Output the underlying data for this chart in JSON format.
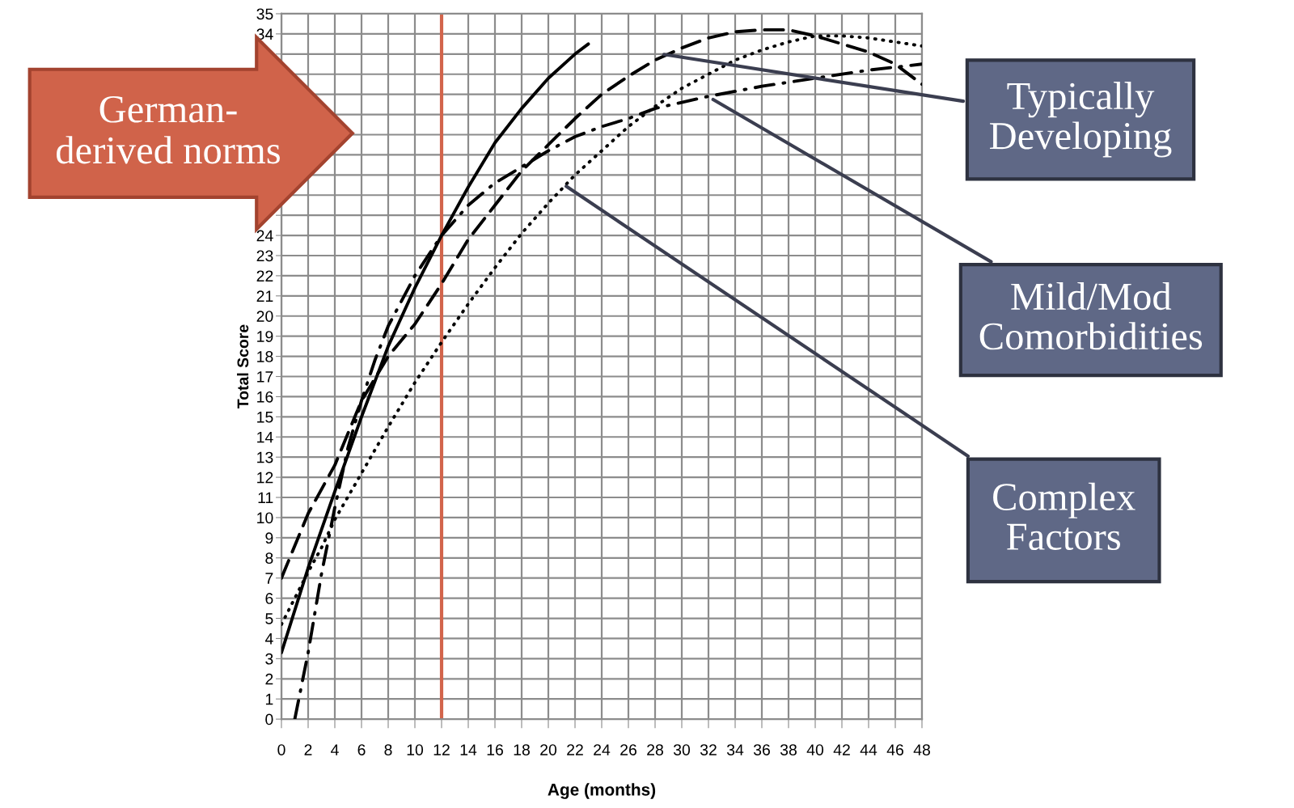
{
  "chart_data": {
    "type": "line",
    "xlabel": "Age (months)",
    "ylabel": "Total Score",
    "xlim": [
      0,
      48
    ],
    "xticks": [
      0,
      2,
      4,
      6,
      8,
      10,
      12,
      14,
      16,
      18,
      20,
      22,
      24,
      26,
      28,
      30,
      32,
      34,
      36,
      38,
      40,
      42,
      44,
      46,
      48
    ],
    "ylim": [
      0,
      35
    ],
    "yticks": [
      0,
      1,
      2,
      3,
      4,
      5,
      6,
      7,
      8,
      9,
      10,
      11,
      12,
      13,
      14,
      15,
      16,
      17,
      18,
      19,
      20,
      21,
      22,
      23,
      24,
      {
        "value": 25,
        "label": null
      },
      {
        "value": 26,
        "label": null
      },
      {
        "value": 27,
        "label": null
      },
      {
        "value": 28,
        "label": null
      },
      {
        "value": 29,
        "label": null
      },
      {
        "value": 30,
        "label": null
      },
      {
        "value": 31,
        "label": null
      },
      {
        "value": 32,
        "label": null
      },
      {
        "value": 33,
        "label": null
      },
      34,
      35
    ],
    "grid": true,
    "legend": false,
    "marker": "none",
    "series": [
      {
        "color": "#000000",
        "line_style": "solid",
        "x": [
          0,
          2,
          4,
          6,
          8,
          10,
          12,
          14,
          16,
          18,
          20,
          22,
          23
        ],
        "values": [
          3.3,
          7.5,
          11.3,
          15.0,
          18.5,
          21.4,
          24.0,
          26.4,
          28.6,
          30.3,
          31.8,
          33.0,
          33.5
        ]
      },
      {
        "color": "#000000",
        "line_style": "dashed",
        "x": [
          0,
          2,
          4,
          6,
          8,
          10,
          12,
          14,
          16,
          18,
          20,
          22,
          24,
          26,
          28,
          30,
          32,
          34,
          36,
          38,
          40,
          42,
          44,
          46,
          48
        ],
        "values": [
          7.0,
          10.2,
          12.6,
          15.8,
          18.0,
          19.6,
          21.6,
          23.8,
          25.5,
          27.2,
          28.5,
          29.8,
          31.0,
          31.9,
          32.7,
          33.3,
          33.8,
          34.1,
          34.2,
          34.2,
          33.9,
          33.5,
          33.1,
          32.5,
          31.5
        ]
      },
      {
        "color": "#000000",
        "line_style": "dashdot",
        "x": [
          1,
          2,
          3,
          4,
          5,
          6,
          7,
          8,
          10,
          12,
          14,
          16,
          18,
          20,
          22,
          24,
          26,
          28,
          30,
          32,
          36,
          40,
          44,
          48
        ],
        "values": [
          0.0,
          3.3,
          7.2,
          10.5,
          13.5,
          15.8,
          17.8,
          19.5,
          22.0,
          24.0,
          25.5,
          26.6,
          27.4,
          28.2,
          28.9,
          29.4,
          29.8,
          30.3,
          30.6,
          30.9,
          31.4,
          31.8,
          32.2,
          32.5
        ]
      },
      {
        "color": "#000000",
        "line_style": "dotted",
        "x": [
          0,
          1,
          2,
          3,
          4,
          6,
          8,
          10,
          12,
          14,
          16,
          18,
          20,
          22,
          24,
          26,
          28,
          30,
          32,
          34,
          36,
          38,
          40,
          42,
          44,
          46,
          48
        ],
        "values": [
          4.7,
          6.0,
          7.3,
          8.5,
          9.9,
          12.2,
          14.5,
          16.7,
          18.7,
          20.6,
          22.4,
          24.1,
          25.6,
          27.0,
          28.2,
          29.4,
          30.4,
          31.3,
          32.0,
          32.7,
          33.2,
          33.6,
          33.9,
          33.9,
          33.8,
          33.6,
          33.4
        ]
      }
    ],
    "ref_lines": [
      {
        "axis": "x",
        "value": 12,
        "color": "#d2644b"
      }
    ],
    "annotations": [
      "German-\nderived norms",
      {
        "text": "Typically\nDeveloping",
        "x": 28.5,
        "y": 33.0
      },
      {
        "text": "Mild/Mod\nComorbidities",
        "x": 32.2,
        "y": 30.8
      },
      {
        "text": "Complex\nFactors",
        "x": 21.2,
        "y": 26.5
      }
    ]
  }
}
